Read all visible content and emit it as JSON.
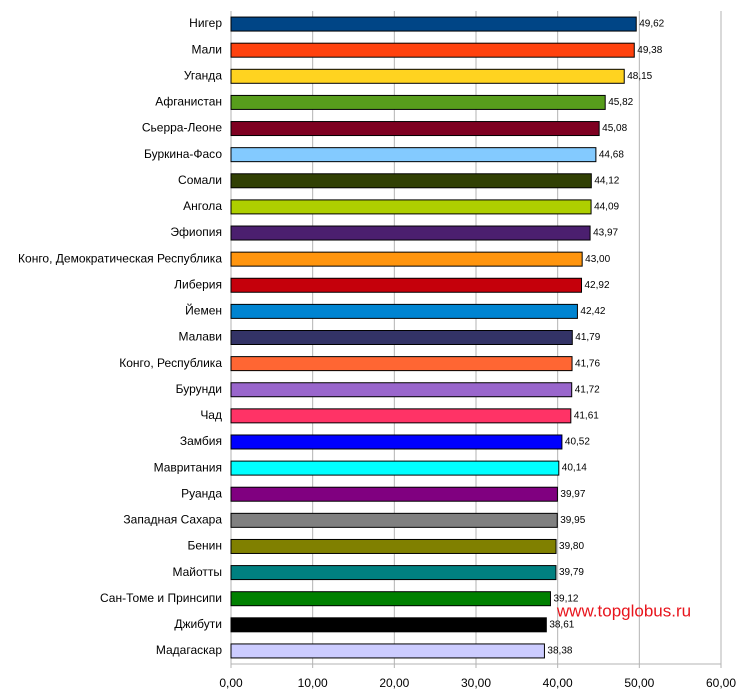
{
  "chart_data": {
    "type": "bar",
    "orientation": "horizontal",
    "categories": [
      "Нигер",
      "Мали",
      "Уганда",
      "Афганистан",
      "Сьерра-Леоне",
      "Буркина-Фасо",
      "Сомали",
      "Ангола",
      "Эфиопия",
      "Конго, Демократическая Республика",
      "Либерия",
      "Йемен",
      "Малави",
      "Конго, Республика",
      "Бурунди",
      "Чад",
      "Замбия",
      "Мавритания",
      "Руанда",
      "Западная Сахара",
      "Бенин",
      "Майотты",
      "Сан-Томе и Принсипи",
      "Джибути",
      "Мадагаскар"
    ],
    "values": [
      49.62,
      49.38,
      48.15,
      45.82,
      45.08,
      44.68,
      44.12,
      44.09,
      43.97,
      43.0,
      42.92,
      42.42,
      41.79,
      41.76,
      41.72,
      41.61,
      40.52,
      40.14,
      39.97,
      39.95,
      39.8,
      39.79,
      39.12,
      38.61,
      38.38
    ],
    "value_labels": [
      "49,62",
      "49,38",
      "48,15",
      "45,82",
      "45,08",
      "44,68",
      "44,12",
      "44,09",
      "43,97",
      "43,00",
      "42,92",
      "42,42",
      "41,79",
      "41,76",
      "41,72",
      "41,61",
      "40,52",
      "40,14",
      "39,97",
      "39,95",
      "39,80",
      "39,79",
      "39,12",
      "38,61",
      "38,38"
    ],
    "colors": [
      "#004586",
      "#ff420e",
      "#ffd320",
      "#579d1c",
      "#7e0021",
      "#83caff",
      "#314004",
      "#aecf00",
      "#4b1f6f",
      "#ff950e",
      "#c5000b",
      "#0084d1",
      "#333366",
      "#ff6633",
      "#9966cc",
      "#ff3366",
      "#0000ff",
      "#00ffff",
      "#800080",
      "#808080",
      "#808000",
      "#008080",
      "#008000",
      "#000000",
      "#ccccff"
    ],
    "xlim": [
      0,
      60
    ],
    "xticks": [
      {
        "value": 0,
        "label": "0,00"
      },
      {
        "value": 10,
        "label": "10,00"
      },
      {
        "value": 20,
        "label": "20,00"
      },
      {
        "value": 30,
        "label": "30,00"
      },
      {
        "value": 40,
        "label": "40,00"
      },
      {
        "value": 50,
        "label": "50,00"
      },
      {
        "value": 60,
        "label": "60,00"
      }
    ],
    "grid": true,
    "annotation": "www.topglobus.ru"
  }
}
